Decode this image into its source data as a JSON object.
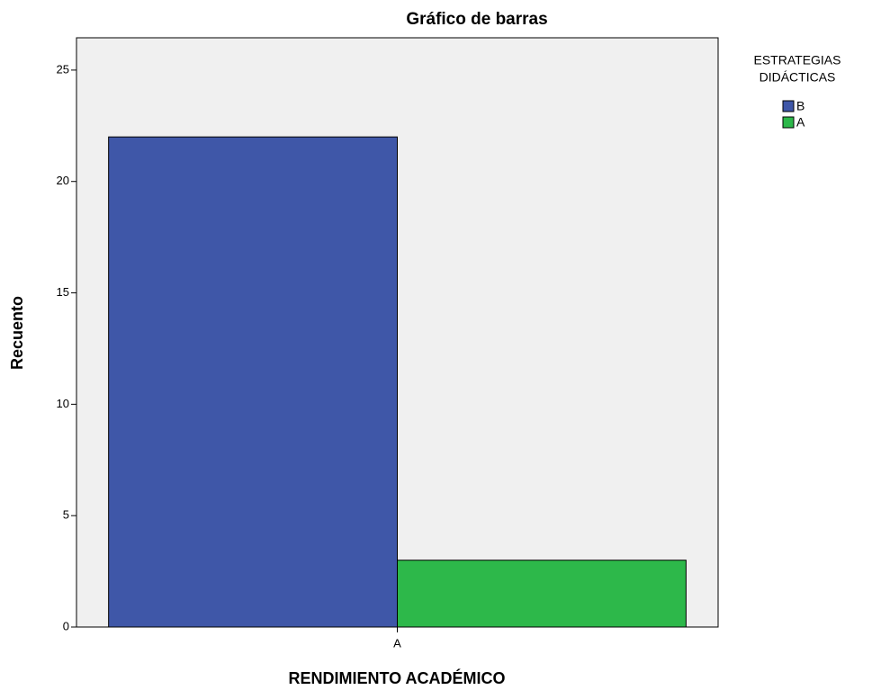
{
  "chart_data": {
    "type": "bar",
    "title": "Gráfico de barras",
    "x_label": "RENDIMIENTO ACADÉMICO",
    "y_label": "Recuento",
    "legend_title": [
      "ESTRATEGIAS",
      "DIDÁCTICAS"
    ],
    "categories": [
      "A"
    ],
    "series": [
      {
        "name": "B",
        "color": "#3f57a8",
        "values": [
          22
        ]
      },
      {
        "name": "A",
        "color": "#2db84a",
        "values": [
          3
        ]
      }
    ],
    "ylim": [
      0,
      26.45
    ],
    "yticks": [
      0,
      5,
      10,
      15,
      20,
      25
    ],
    "grid": false,
    "legend": "right"
  }
}
